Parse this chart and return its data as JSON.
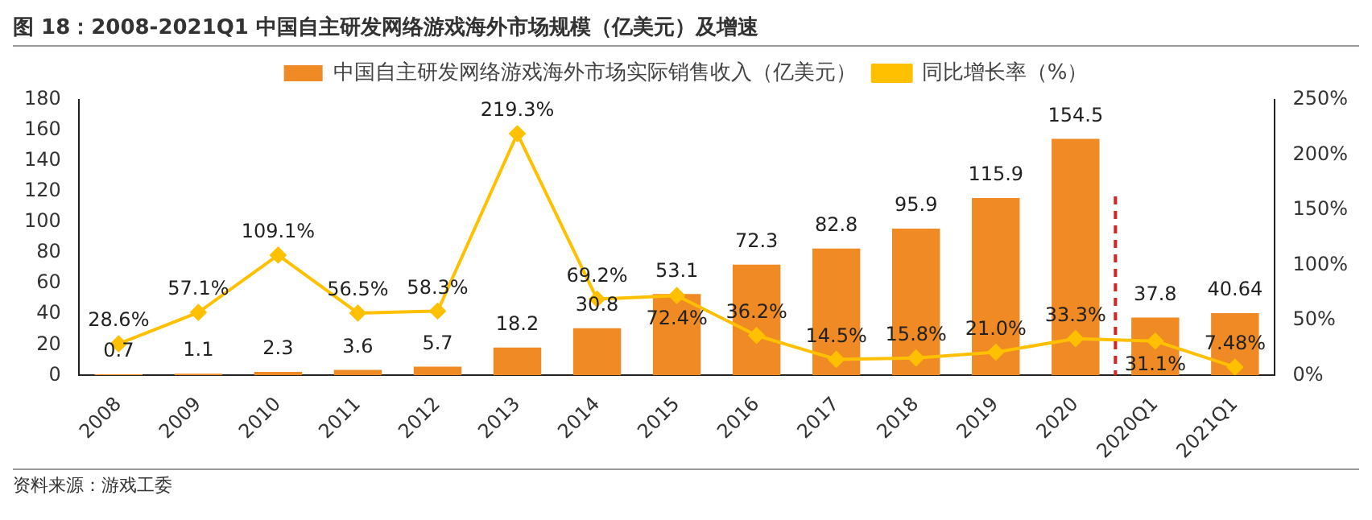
{
  "chart_data": {
    "type": "bar",
    "title": "图 18：2008-2021Q1 中国自主研发网络游戏海外市场规模（亿美元）及增速",
    "categories": [
      "2008",
      "2009",
      "2010",
      "2011",
      "2012",
      "2013",
      "2014",
      "2015",
      "2016",
      "2017",
      "2018",
      "2019",
      "2020",
      "2020Q1",
      "2021Q1"
    ],
    "series": [
      {
        "name": "中国自主研发网络游戏海外市场实际销售收入（亿美元）",
        "color": "#f08a24",
        "values": [
          0.7,
          1.1,
          2.3,
          3.6,
          5.7,
          18.2,
          30.8,
          53.1,
          72.3,
          82.8,
          95.9,
          115.9,
          154.5,
          37.8,
          40.64
        ]
      },
      {
        "type": "line",
        "axis": "y2",
        "name": "同比增长率（%）",
        "color": "#ffc000",
        "marker": "diamond",
        "values": [
          28.6,
          57.1,
          109.1,
          56.5,
          58.3,
          219.3,
          69.2,
          72.4,
          36.2,
          14.5,
          15.8,
          21.0,
          33.3,
          31.1,
          7.48
        ],
        "value_labels": [
          "28.6%",
          "57.1%",
          "109.1%",
          "56.5%",
          "58.3%",
          "219.3%",
          "69.2%",
          "72.4%",
          "36.2%",
          "14.5%",
          "15.8%",
          "21.0%",
          "33.3%",
          "31.1%",
          "7.48%"
        ]
      }
    ],
    "ylim": [
      0,
      180
    ],
    "yticks": [
      0,
      20,
      40,
      60,
      80,
      100,
      120,
      140,
      160,
      180
    ],
    "y2lim": [
      0,
      250
    ],
    "y2ticks": [
      {
        "value": 0,
        "label": "0%"
      },
      {
        "value": 50,
        "label": "50%"
      },
      {
        "value": 100,
        "label": "100%"
      },
      {
        "value": 150,
        "label": "150%"
      },
      {
        "value": 200,
        "label": "200%"
      },
      {
        "value": 250,
        "label": "250%"
      }
    ],
    "ref_lines": [
      {
        "axis": "x",
        "value": "2020Q1",
        "color": "#e02020",
        "line_style": "dashed"
      }
    ],
    "data_labels": true,
    "legend": "top",
    "grid": false,
    "annotations": [
      "资料来源：游戏工委"
    ]
  }
}
